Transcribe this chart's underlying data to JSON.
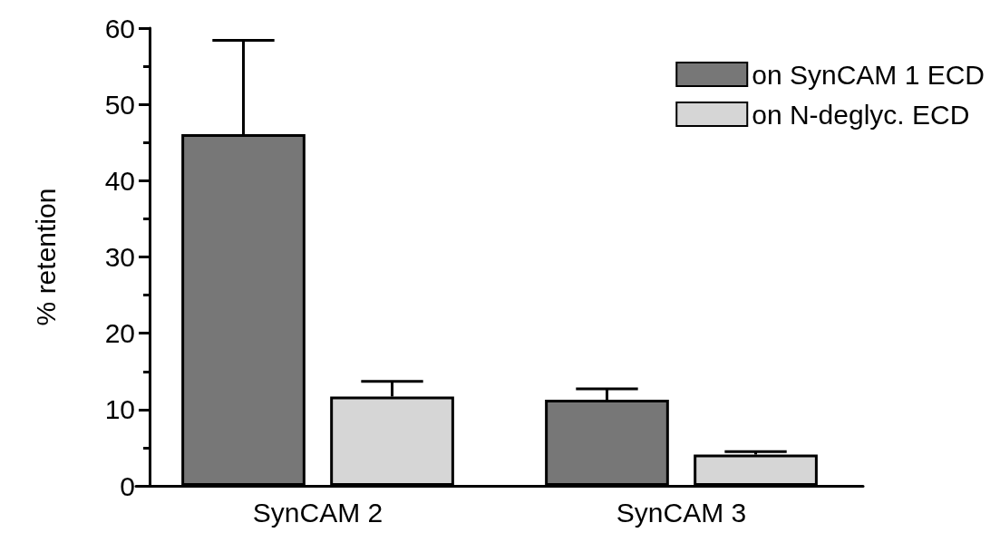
{
  "chart_data": {
    "type": "bar",
    "ylabel": "% retention",
    "categories": [
      "SynCAM 2",
      "SynCAM 3"
    ],
    "series": [
      {
        "name": "on SynCAM 1 ECD",
        "color": "#777777",
        "values": [
          46.1,
          11.3
        ],
        "errors": [
          12.3,
          1.4
        ]
      },
      {
        "name": "on N-deglyc. ECD",
        "color": "#d6d6d6",
        "values": [
          11.7,
          4.1
        ],
        "errors": [
          2.0,
          0.4
        ]
      }
    ],
    "ylim": [
      0,
      60
    ],
    "yticks": [
      0,
      {
        "value": 5,
        "label": null
      },
      10,
      {
        "value": 15,
        "label": null
      },
      20,
      {
        "value": 25,
        "label": null
      },
      30,
      {
        "value": 35,
        "label": null
      },
      40,
      {
        "value": 45,
        "label": null
      },
      50,
      {
        "value": 55,
        "label": null
      },
      60
    ],
    "grid": false,
    "legend": "top right"
  }
}
